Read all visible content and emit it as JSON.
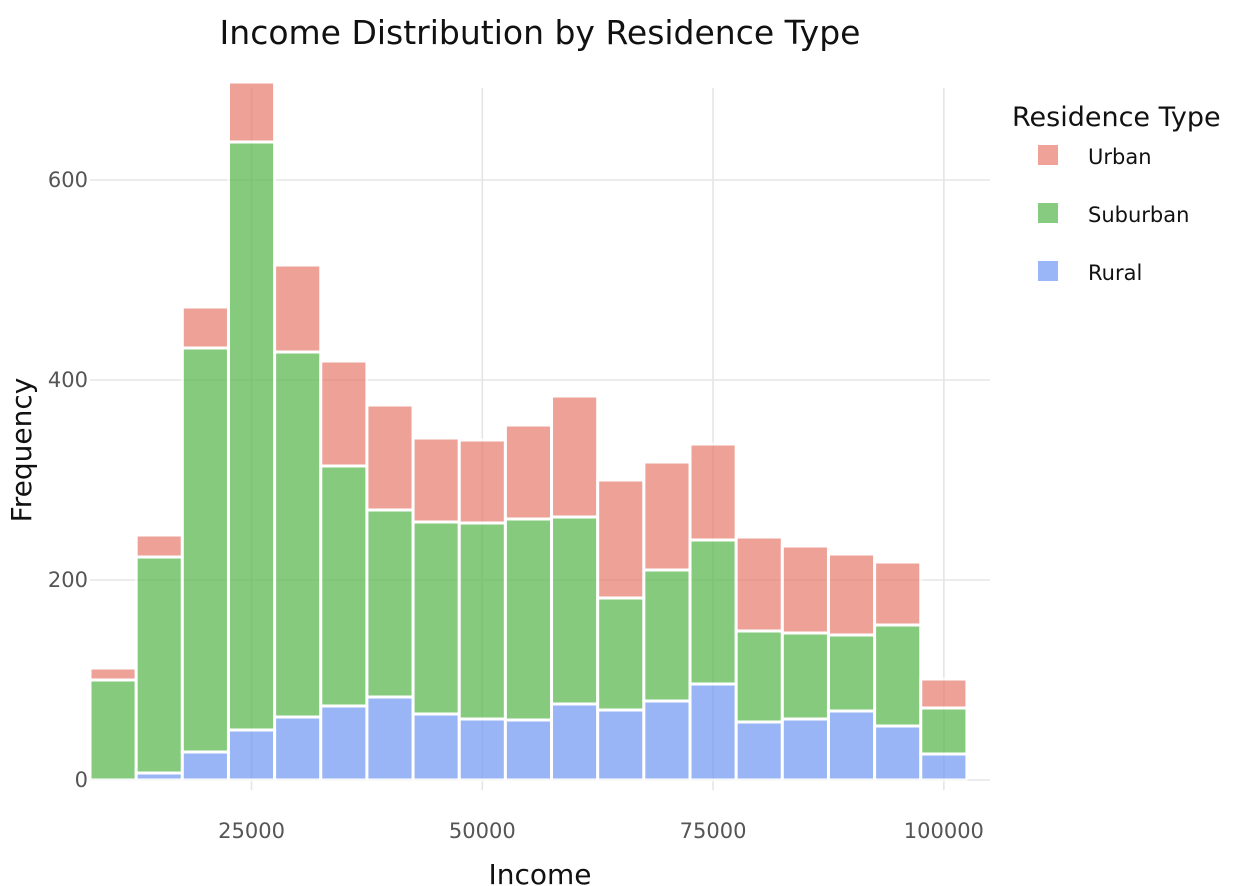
{
  "chart_data": {
    "type": "bar",
    "stacked": true,
    "title": "Income Distribution by Residence Type",
    "xlabel": "Income",
    "ylabel": "Frequency",
    "xlim": [
      7500,
      105000
    ],
    "ylim": [
      -10,
      710
    ],
    "bin_width": 5000,
    "x": [
      10000,
      15000,
      20000,
      25000,
      30000,
      35000,
      40000,
      45000,
      50000,
      55000,
      60000,
      65000,
      70000,
      75000,
      80000,
      85000,
      90000,
      95000,
      100000
    ],
    "xticks": [
      25000,
      50000,
      75000,
      100000
    ],
    "xtick_labels": [
      "25000",
      "50000",
      "75000",
      "100000"
    ],
    "yticks": [
      0,
      200,
      400,
      600
    ],
    "ytick_labels": [
      "0",
      "200",
      "400",
      "600"
    ],
    "grid": true,
    "legend": {
      "title": "Residence Type",
      "position": "top-right"
    },
    "series": [
      {
        "name": "Rural",
        "color": "#6f97f2",
        "values": [
          0,
          7,
          28,
          50,
          63,
          74,
          83,
          66,
          61,
          60,
          76,
          70,
          79,
          96,
          58,
          61,
          69,
          54,
          26
        ]
      },
      {
        "name": "Suburban",
        "color": "#53b548",
        "values": [
          100,
          216,
          404,
          588,
          365,
          240,
          187,
          192,
          196,
          201,
          187,
          112,
          131,
          144,
          91,
          86,
          76,
          101,
          46
        ]
      },
      {
        "name": "Urban",
        "color": "#e87a6b",
        "values": [
          12,
          22,
          41,
          60,
          87,
          105,
          105,
          84,
          83,
          94,
          121,
          118,
          108,
          96,
          94,
          87,
          81,
          63,
          29
        ]
      }
    ],
    "legend_order": [
      "Urban",
      "Suburban",
      "Rural"
    ]
  }
}
